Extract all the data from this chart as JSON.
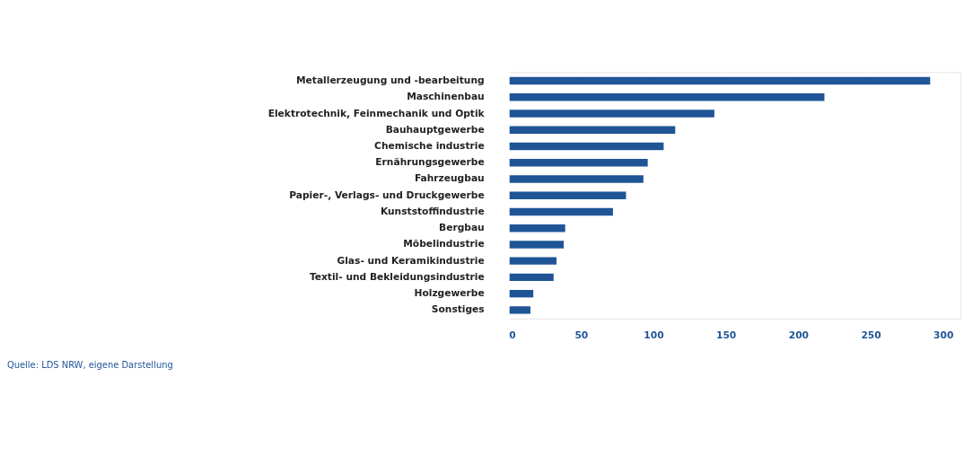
{
  "chart_data": {
    "type": "bar",
    "orientation": "horizontal",
    "categories": [
      "Metallerzeugung und -bearbeitung",
      "Maschinenbau",
      "Elektrotechnik, Feinmechanik und Optik",
      "Bauhauptgewerbe",
      "Chemische industrie",
      "Ernährungsgewerbe",
      "Fahrzeugbau",
      "Papier-, Verlags- und Druckgewerbe",
      "Kunststoffindustrie",
      "Bergbau",
      "Möbelindustrie",
      "Glas- und Keramikindustrie",
      "Textil- und Bekleidungsindustrie",
      "Holzgewerbe",
      "Sonstiges"
    ],
    "values": [
      291,
      218,
      142,
      115,
      107,
      96,
      93,
      81,
      72,
      39,
      38,
      33,
      31,
      17,
      15
    ],
    "color": "#1f5597",
    "xlim": [
      0,
      312
    ],
    "xticks": [
      0,
      50,
      100,
      150,
      200,
      250,
      300
    ],
    "grid": "x",
    "annotations": [
      "Quelle: LDS NRW, eigene Darstellung"
    ]
  }
}
